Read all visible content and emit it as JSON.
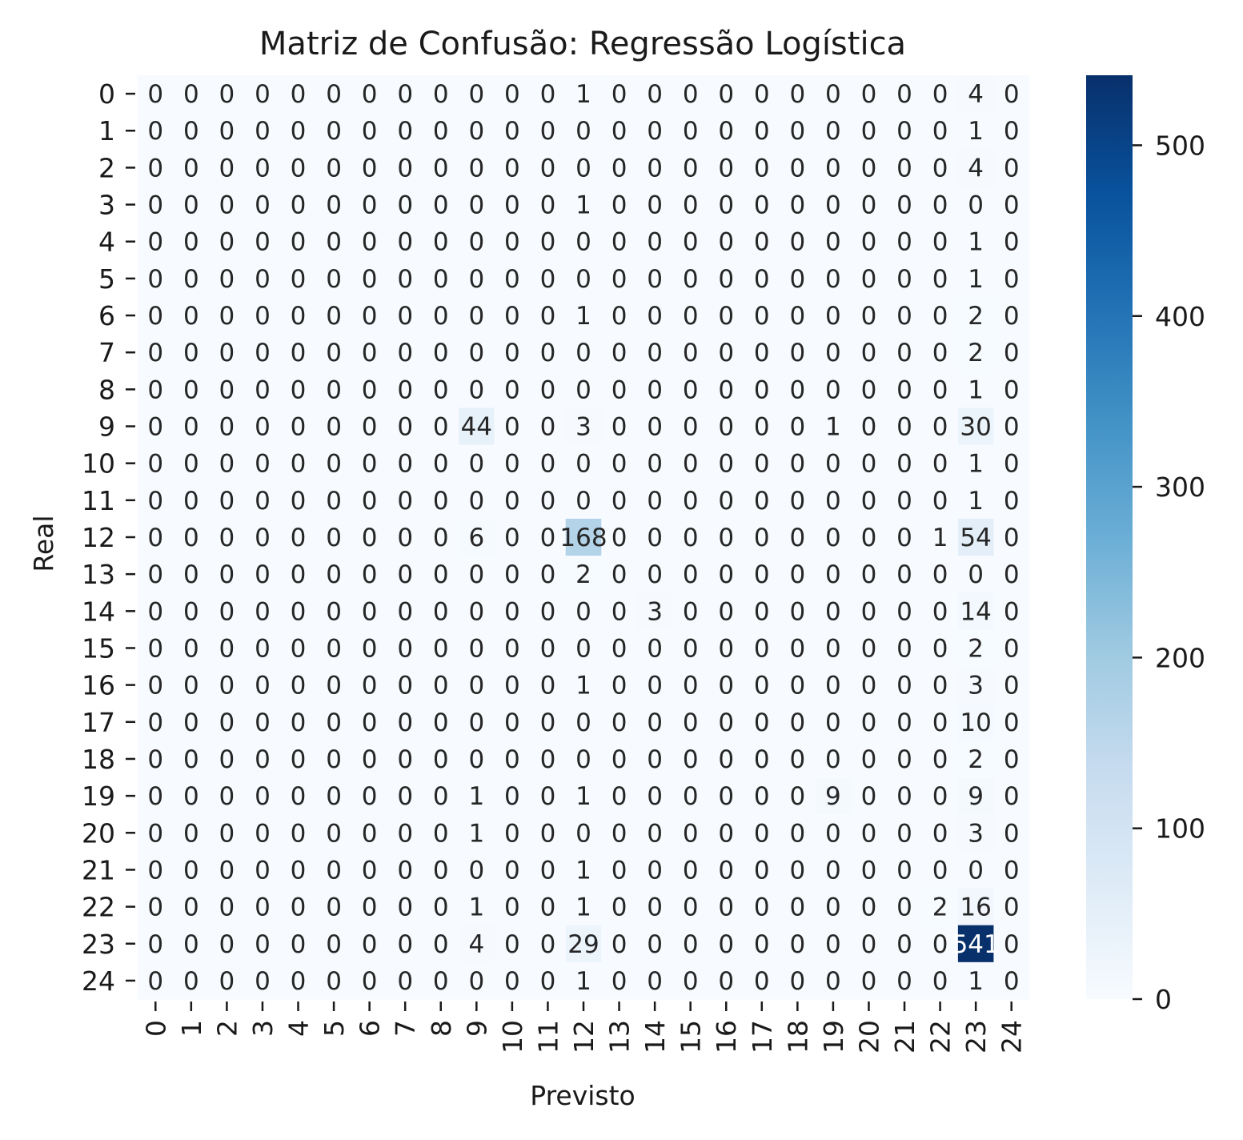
{
  "chart_data": {
    "type": "heatmap",
    "title": "Matriz de Confusão: Regressão Logística",
    "xlabel": "Previsto",
    "ylabel": "Real",
    "x_tick_labels": [
      "0",
      "1",
      "2",
      "3",
      "4",
      "5",
      "6",
      "7",
      "8",
      "9",
      "10",
      "11",
      "12",
      "13",
      "14",
      "15",
      "16",
      "17",
      "18",
      "19",
      "20",
      "21",
      "22",
      "23",
      "24"
    ],
    "y_tick_labels": [
      "0",
      "1",
      "2",
      "3",
      "4",
      "5",
      "6",
      "7",
      "8",
      "9",
      "10",
      "11",
      "12",
      "13",
      "14",
      "15",
      "16",
      "17",
      "18",
      "19",
      "20",
      "21",
      "22",
      "23",
      "24"
    ],
    "colormap": "Blues",
    "color_low": "#f7fbff",
    "color_high": "#08306b",
    "vmin": 0,
    "vmax": 541,
    "colorbar_ticks": [
      "0",
      "100",
      "200",
      "300",
      "400",
      "500"
    ],
    "colorbar_tick_values": [
      0,
      100,
      200,
      300,
      400,
      500
    ],
    "matrix": [
      [
        0,
        0,
        0,
        0,
        0,
        0,
        0,
        0,
        0,
        0,
        0,
        0,
        1,
        0,
        0,
        0,
        0,
        0,
        0,
        0,
        0,
        0,
        0,
        4,
        0
      ],
      [
        0,
        0,
        0,
        0,
        0,
        0,
        0,
        0,
        0,
        0,
        0,
        0,
        0,
        0,
        0,
        0,
        0,
        0,
        0,
        0,
        0,
        0,
        0,
        1,
        0
      ],
      [
        0,
        0,
        0,
        0,
        0,
        0,
        0,
        0,
        0,
        0,
        0,
        0,
        0,
        0,
        0,
        0,
        0,
        0,
        0,
        0,
        0,
        0,
        0,
        4,
        0
      ],
      [
        0,
        0,
        0,
        0,
        0,
        0,
        0,
        0,
        0,
        0,
        0,
        0,
        1,
        0,
        0,
        0,
        0,
        0,
        0,
        0,
        0,
        0,
        0,
        0,
        0
      ],
      [
        0,
        0,
        0,
        0,
        0,
        0,
        0,
        0,
        0,
        0,
        0,
        0,
        0,
        0,
        0,
        0,
        0,
        0,
        0,
        0,
        0,
        0,
        0,
        1,
        0
      ],
      [
        0,
        0,
        0,
        0,
        0,
        0,
        0,
        0,
        0,
        0,
        0,
        0,
        0,
        0,
        0,
        0,
        0,
        0,
        0,
        0,
        0,
        0,
        0,
        1,
        0
      ],
      [
        0,
        0,
        0,
        0,
        0,
        0,
        0,
        0,
        0,
        0,
        0,
        0,
        1,
        0,
        0,
        0,
        0,
        0,
        0,
        0,
        0,
        0,
        0,
        2,
        0
      ],
      [
        0,
        0,
        0,
        0,
        0,
        0,
        0,
        0,
        0,
        0,
        0,
        0,
        0,
        0,
        0,
        0,
        0,
        0,
        0,
        0,
        0,
        0,
        0,
        2,
        0
      ],
      [
        0,
        0,
        0,
        0,
        0,
        0,
        0,
        0,
        0,
        0,
        0,
        0,
        0,
        0,
        0,
        0,
        0,
        0,
        0,
        0,
        0,
        0,
        0,
        1,
        0
      ],
      [
        0,
        0,
        0,
        0,
        0,
        0,
        0,
        0,
        0,
        44,
        0,
        0,
        3,
        0,
        0,
        0,
        0,
        0,
        0,
        1,
        0,
        0,
        0,
        30,
        0
      ],
      [
        0,
        0,
        0,
        0,
        0,
        0,
        0,
        0,
        0,
        0,
        0,
        0,
        0,
        0,
        0,
        0,
        0,
        0,
        0,
        0,
        0,
        0,
        0,
        1,
        0
      ],
      [
        0,
        0,
        0,
        0,
        0,
        0,
        0,
        0,
        0,
        0,
        0,
        0,
        0,
        0,
        0,
        0,
        0,
        0,
        0,
        0,
        0,
        0,
        0,
        1,
        0
      ],
      [
        0,
        0,
        0,
        0,
        0,
        0,
        0,
        0,
        0,
        6,
        0,
        0,
        168,
        0,
        0,
        0,
        0,
        0,
        0,
        0,
        0,
        0,
        1,
        54,
        0
      ],
      [
        0,
        0,
        0,
        0,
        0,
        0,
        0,
        0,
        0,
        0,
        0,
        0,
        2,
        0,
        0,
        0,
        0,
        0,
        0,
        0,
        0,
        0,
        0,
        0,
        0
      ],
      [
        0,
        0,
        0,
        0,
        0,
        0,
        0,
        0,
        0,
        0,
        0,
        0,
        0,
        0,
        3,
        0,
        0,
        0,
        0,
        0,
        0,
        0,
        0,
        14,
        0
      ],
      [
        0,
        0,
        0,
        0,
        0,
        0,
        0,
        0,
        0,
        0,
        0,
        0,
        0,
        0,
        0,
        0,
        0,
        0,
        0,
        0,
        0,
        0,
        0,
        2,
        0
      ],
      [
        0,
        0,
        0,
        0,
        0,
        0,
        0,
        0,
        0,
        0,
        0,
        0,
        1,
        0,
        0,
        0,
        0,
        0,
        0,
        0,
        0,
        0,
        0,
        3,
        0
      ],
      [
        0,
        0,
        0,
        0,
        0,
        0,
        0,
        0,
        0,
        0,
        0,
        0,
        0,
        0,
        0,
        0,
        0,
        0,
        0,
        0,
        0,
        0,
        0,
        10,
        0
      ],
      [
        0,
        0,
        0,
        0,
        0,
        0,
        0,
        0,
        0,
        0,
        0,
        0,
        0,
        0,
        0,
        0,
        0,
        0,
        0,
        0,
        0,
        0,
        0,
        2,
        0
      ],
      [
        0,
        0,
        0,
        0,
        0,
        0,
        0,
        0,
        0,
        1,
        0,
        0,
        1,
        0,
        0,
        0,
        0,
        0,
        0,
        9,
        0,
        0,
        0,
        9,
        0
      ],
      [
        0,
        0,
        0,
        0,
        0,
        0,
        0,
        0,
        0,
        1,
        0,
        0,
        0,
        0,
        0,
        0,
        0,
        0,
        0,
        0,
        0,
        0,
        0,
        3,
        0
      ],
      [
        0,
        0,
        0,
        0,
        0,
        0,
        0,
        0,
        0,
        0,
        0,
        0,
        1,
        0,
        0,
        0,
        0,
        0,
        0,
        0,
        0,
        0,
        0,
        0,
        0
      ],
      [
        0,
        0,
        0,
        0,
        0,
        0,
        0,
        0,
        0,
        1,
        0,
        0,
        1,
        0,
        0,
        0,
        0,
        0,
        0,
        0,
        0,
        0,
        2,
        16,
        0
      ],
      [
        0,
        0,
        0,
        0,
        0,
        0,
        0,
        0,
        0,
        4,
        0,
        0,
        29,
        0,
        0,
        0,
        0,
        0,
        0,
        0,
        0,
        0,
        0,
        541,
        0
      ],
      [
        0,
        0,
        0,
        0,
        0,
        0,
        0,
        0,
        0,
        0,
        0,
        0,
        1,
        0,
        0,
        0,
        0,
        0,
        0,
        0,
        0,
        0,
        0,
        1,
        0
      ]
    ]
  }
}
